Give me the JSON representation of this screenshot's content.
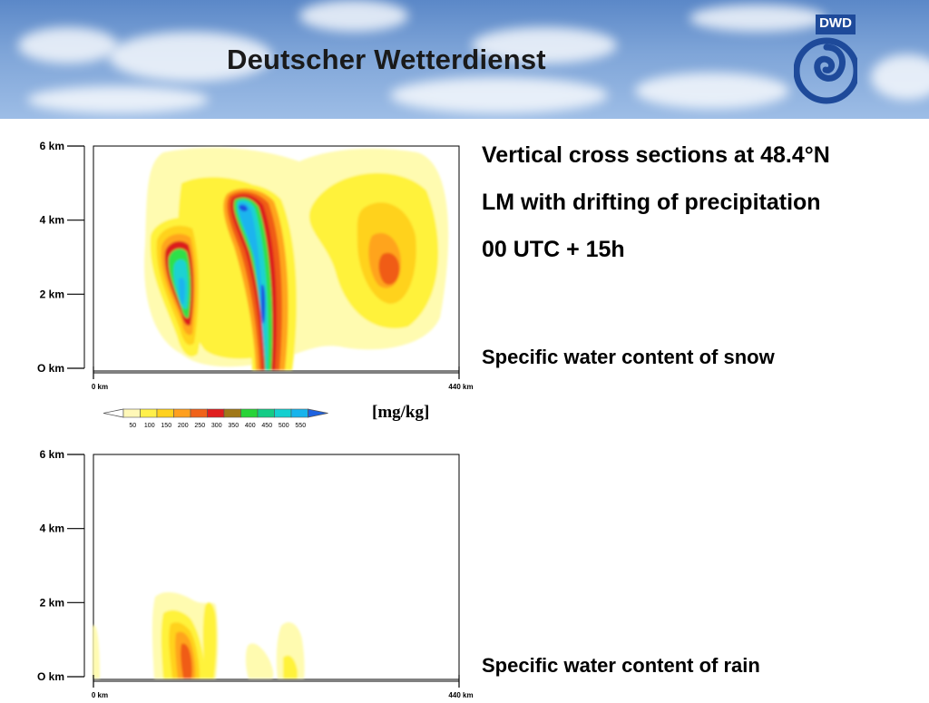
{
  "banner": {
    "title": "Deutscher Wetterdienst",
    "logo_text": "DWD",
    "logo_icon": "dwd-swirl-icon"
  },
  "header": {
    "title_line1": "Vertical cross sections at 48.4°N",
    "title_line2": "LM with drifting of precipitation",
    "title_line3": "00 UTC + 15h"
  },
  "colors": {
    "levels": [
      "#fffbb0",
      "#fff23a",
      "#ffd21a",
      "#ffa41a",
      "#f05c16",
      "#dc1e1e",
      "#cf2b1e",
      "#2ee04a",
      "#1ed68e",
      "#1ed2d2",
      "#1eb4ee",
      "#1e50e0"
    ],
    "background": "#ffffff"
  },
  "colorbar": {
    "ticks": [
      "50",
      "100",
      "150",
      "200",
      "250",
      "300",
      "350",
      "400",
      "450",
      "500",
      "550"
    ],
    "colors": [
      "#fff8b8",
      "#fff04a",
      "#ffd11e",
      "#ff9f1e",
      "#f0621a",
      "#e01e1e",
      "#a07818",
      "#28d438",
      "#14cc86",
      "#14d0d0",
      "#18b4ec",
      "#1e62e0"
    ],
    "unit": "[mg/kg]"
  },
  "chart_data": [
    {
      "type": "heatmap",
      "caption": "Specific water content of snow",
      "xlabel": "",
      "ylabel": "",
      "x_ticks": [
        "0 km",
        "440 km"
      ],
      "y_ticks": [
        "O km",
        "2 km",
        "4 km",
        "6 km"
      ],
      "xlim": [
        0,
        440
      ],
      "ylim": [
        0,
        6
      ],
      "x_unit": "km",
      "y_unit": "km",
      "value_unit": "mg/kg",
      "contour_levels": [
        50,
        100,
        150,
        200,
        250,
        300,
        350,
        400,
        450,
        500,
        550
      ],
      "cells": [
        {
          "name": "left-cell",
          "x_km": 115,
          "z_km": 2.3,
          "max": 550
        },
        {
          "name": "middle-cell",
          "x_km": 205,
          "z_km": 2.0,
          "max": 550
        },
        {
          "name": "right-cell",
          "x_km": 363,
          "z_km": 2.7,
          "max": 250
        }
      ]
    },
    {
      "type": "heatmap",
      "caption": "Specific water content of rain",
      "xlabel": "",
      "ylabel": "",
      "x_ticks": [
        "0 km",
        "440 km"
      ],
      "y_ticks": [
        "O km",
        "2 km",
        "4 km",
        "6 km"
      ],
      "xlim": [
        0,
        440
      ],
      "ylim": [
        0,
        6
      ],
      "x_unit": "km",
      "y_unit": "km",
      "value_unit": "mg/kg",
      "contour_levels": [
        50,
        100,
        150,
        200,
        250,
        300,
        350,
        400,
        450,
        500,
        550
      ],
      "cells": [
        {
          "name": "left-cell",
          "x_km": 110,
          "z_km": 0.5,
          "max": 250
        },
        {
          "name": "middle-cell",
          "x_km": 225,
          "z_km": 0.2,
          "max": 100
        }
      ]
    }
  ]
}
